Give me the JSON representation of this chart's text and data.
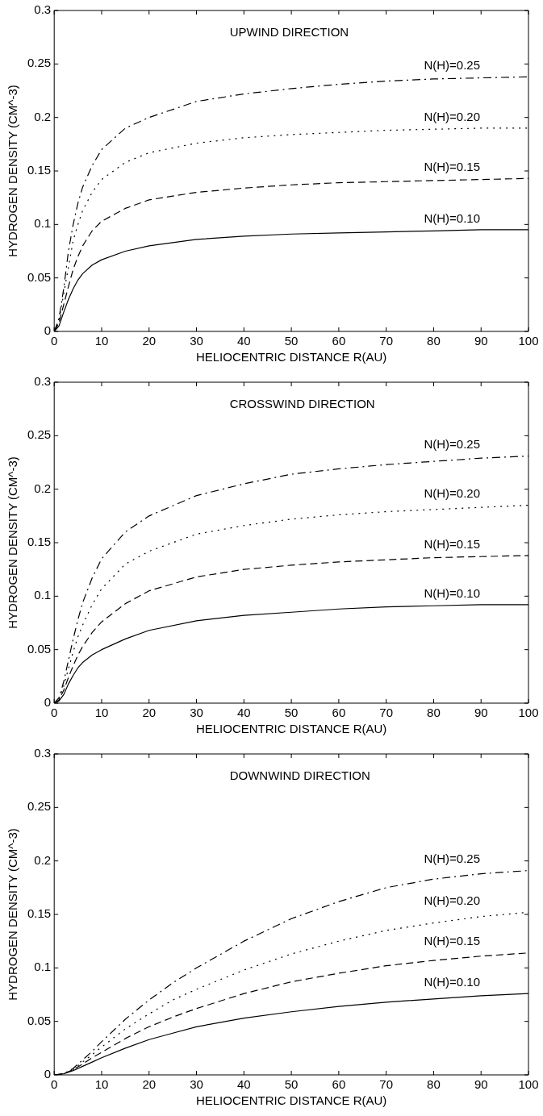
{
  "chart_data": [
    {
      "type": "line",
      "title": "UPWIND DIRECTION",
      "xlabel": "HELIOCENTRIC DISTANCE R(AU)",
      "ylabel": "HYDROGEN DENSITY (CM^-3)",
      "xlim": [
        0,
        100
      ],
      "xticks": [
        0,
        10,
        20,
        30,
        40,
        50,
        60,
        70,
        80,
        90,
        100
      ],
      "ylim": [
        0,
        0.3
      ],
      "yticks": [
        0,
        0.05,
        0.1,
        0.15,
        0.2,
        0.25,
        0.3
      ],
      "grid": false,
      "legend": false,
      "marker": "none",
      "x": [
        0,
        1,
        2,
        3,
        4,
        5,
        6,
        8,
        10,
        15,
        20,
        30,
        40,
        50,
        60,
        70,
        80,
        90,
        100
      ],
      "series": [
        {
          "name": "N(H)=0.10",
          "color": "#000000",
          "line_style": "solid",
          "values": [
            0,
            0.005,
            0.018,
            0.03,
            0.04,
            0.048,
            0.054,
            0.062,
            0.067,
            0.075,
            0.08,
            0.086,
            0.089,
            0.091,
            0.092,
            0.093,
            0.094,
            0.095,
            0.095
          ]
        },
        {
          "name": "N(H)=0.15",
          "color": "#000000",
          "line_style": "dashed",
          "values": [
            0,
            0.008,
            0.025,
            0.042,
            0.058,
            0.07,
            0.08,
            0.094,
            0.103,
            0.115,
            0.123,
            0.13,
            0.134,
            0.137,
            0.139,
            0.14,
            0.141,
            0.142,
            0.143
          ]
        },
        {
          "name": "N(H)=0.20",
          "color": "#000000",
          "line_style": "dotted",
          "values": [
            0,
            0.01,
            0.035,
            0.06,
            0.085,
            0.1,
            0.113,
            0.13,
            0.142,
            0.158,
            0.167,
            0.176,
            0.181,
            0.184,
            0.186,
            0.188,
            0.189,
            0.19,
            0.19
          ]
        },
        {
          "name": "N(H)=0.25",
          "color": "#000000",
          "line_style": "dashdot",
          "values": [
            0,
            0.012,
            0.04,
            0.075,
            0.1,
            0.12,
            0.135,
            0.155,
            0.17,
            0.19,
            0.2,
            0.215,
            0.222,
            0.227,
            0.231,
            0.234,
            0.236,
            0.237,
            0.238
          ]
        }
      ]
    },
    {
      "type": "line",
      "title": "CROSSWIND DIRECTION",
      "xlabel": "HELIOCENTRIC DISTANCE R(AU)",
      "ylabel": "HYDROGEN DENSITY (CM^-3)",
      "xlim": [
        0,
        100
      ],
      "xticks": [
        0,
        10,
        20,
        30,
        40,
        50,
        60,
        70,
        80,
        90,
        100
      ],
      "ylim": [
        0,
        0.3
      ],
      "yticks": [
        0,
        0.05,
        0.1,
        0.15,
        0.2,
        0.25,
        0.3
      ],
      "grid": false,
      "legend": false,
      "marker": "none",
      "x": [
        0,
        1,
        2,
        3,
        4,
        5,
        6,
        8,
        10,
        15,
        20,
        30,
        40,
        50,
        60,
        70,
        80,
        90,
        100
      ],
      "series": [
        {
          "name": "N(H)=0.10",
          "color": "#000000",
          "line_style": "solid",
          "values": [
            0,
            0.002,
            0.008,
            0.018,
            0.026,
            0.033,
            0.038,
            0.045,
            0.05,
            0.06,
            0.068,
            0.077,
            0.082,
            0.085,
            0.088,
            0.09,
            0.091,
            0.092,
            0.092
          ]
        },
        {
          "name": "N(H)=0.15",
          "color": "#000000",
          "line_style": "dashed",
          "values": [
            0,
            0.003,
            0.012,
            0.024,
            0.035,
            0.045,
            0.053,
            0.066,
            0.076,
            0.093,
            0.105,
            0.118,
            0.125,
            0.129,
            0.132,
            0.134,
            0.136,
            0.137,
            0.138
          ]
        },
        {
          "name": "N(H)=0.20",
          "color": "#000000",
          "line_style": "dotted",
          "values": [
            0,
            0.004,
            0.016,
            0.032,
            0.048,
            0.062,
            0.073,
            0.092,
            0.107,
            0.13,
            0.142,
            0.158,
            0.166,
            0.172,
            0.176,
            0.179,
            0.181,
            0.183,
            0.185
          ]
        },
        {
          "name": "N(H)=0.25",
          "color": "#000000",
          "line_style": "dashdot",
          "values": [
            0,
            0.005,
            0.02,
            0.04,
            0.06,
            0.078,
            0.094,
            0.117,
            0.135,
            0.16,
            0.175,
            0.194,
            0.205,
            0.214,
            0.219,
            0.223,
            0.226,
            0.229,
            0.231
          ]
        }
      ]
    },
    {
      "type": "line",
      "title": "DOWNWIND DIRECTION",
      "xlabel": "HELIOCENTRIC DISTANCE R(AU)",
      "ylabel": "HYDROGEN DENSITY (CM^-3)",
      "xlim": [
        0,
        100
      ],
      "xticks": [
        0,
        10,
        20,
        30,
        40,
        50,
        60,
        70,
        80,
        90,
        100
      ],
      "ylim": [
        0,
        0.3
      ],
      "yticks": [
        0,
        0.05,
        0.1,
        0.15,
        0.2,
        0.25,
        0.3
      ],
      "grid": false,
      "legend": false,
      "marker": "none",
      "x": [
        0,
        2,
        4,
        6,
        8,
        10,
        15,
        20,
        25,
        30,
        40,
        50,
        60,
        70,
        80,
        90,
        100
      ],
      "series": [
        {
          "name": "N(H)=0.10",
          "color": "#000000",
          "line_style": "solid",
          "values": [
            0,
            0.001,
            0.004,
            0.008,
            0.012,
            0.016,
            0.025,
            0.033,
            0.039,
            0.045,
            0.053,
            0.059,
            0.064,
            0.068,
            0.071,
            0.074,
            0.076
          ]
        },
        {
          "name": "N(H)=0.15",
          "color": "#000000",
          "line_style": "dashed",
          "values": [
            0,
            0.001,
            0.005,
            0.01,
            0.016,
            0.021,
            0.034,
            0.045,
            0.054,
            0.062,
            0.076,
            0.087,
            0.095,
            0.102,
            0.107,
            0.111,
            0.114
          ]
        },
        {
          "name": "N(H)=0.20",
          "color": "#000000",
          "line_style": "dotted",
          "values": [
            0,
            0.001,
            0.005,
            0.012,
            0.019,
            0.026,
            0.043,
            0.057,
            0.07,
            0.08,
            0.098,
            0.113,
            0.125,
            0.135,
            0.142,
            0.148,
            0.152
          ]
        },
        {
          "name": "N(H)=0.25",
          "color": "#000000",
          "line_style": "dashdot",
          "values": [
            0,
            0.001,
            0.006,
            0.014,
            0.022,
            0.031,
            0.052,
            0.07,
            0.086,
            0.1,
            0.125,
            0.146,
            0.162,
            0.175,
            0.183,
            0.188,
            0.191
          ]
        }
      ]
    }
  ]
}
